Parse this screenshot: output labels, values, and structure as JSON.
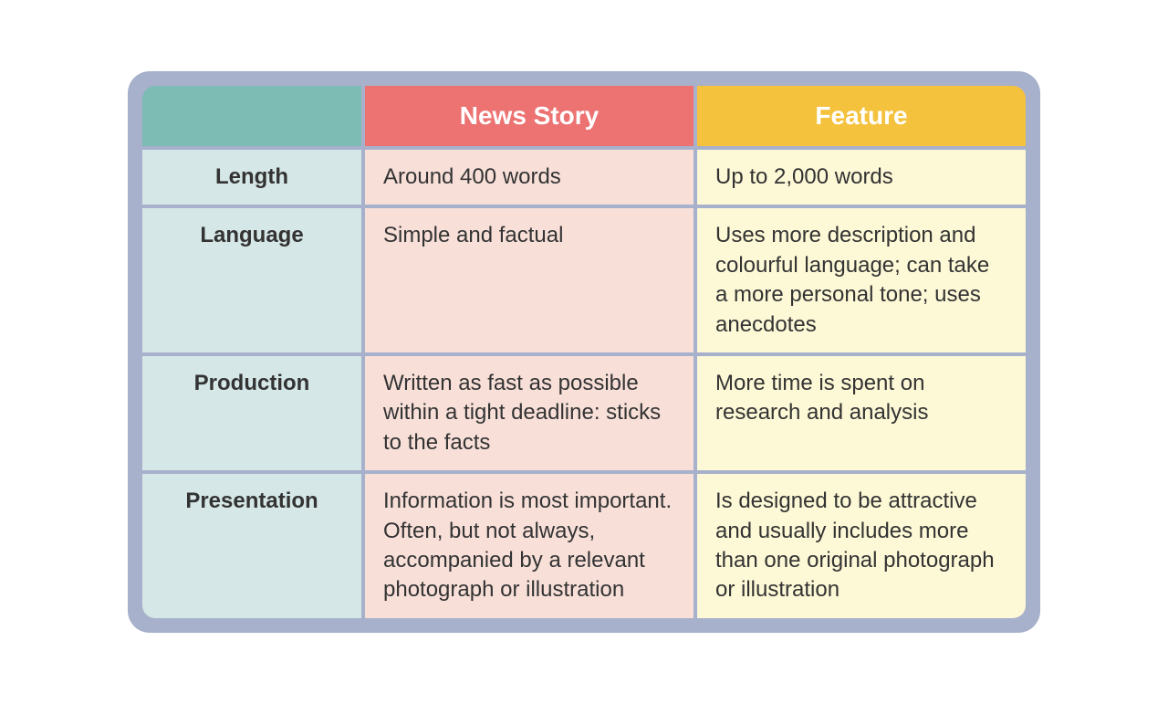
{
  "table": {
    "type": "table",
    "border_color": "#a8b1cc",
    "container_background": "#a8b1cc",
    "header_fontsize": 28,
    "cell_fontsize": 24,
    "columns": [
      {
        "key": "label",
        "header": "",
        "header_bg": "#7cbcb5",
        "cell_bg": "#d6e7e7",
        "width": "25%"
      },
      {
        "key": "news",
        "header": "News Story",
        "header_bg": "#ed7272",
        "cell_bg": "#f8e0d9",
        "width": "37.5%"
      },
      {
        "key": "feature",
        "header": "Feature",
        "header_bg": "#f4c23d",
        "cell_bg": "#fdf8d6",
        "width": "37.5%"
      }
    ],
    "rows": [
      {
        "label": "Length",
        "news": "Around 400 words",
        "feature": "Up to 2,000 words"
      },
      {
        "label": "Language",
        "news": "Simple and factual",
        "feature": "Uses more description and colourful language; can take a more personal tone; uses anecdotes"
      },
      {
        "label": "Production",
        "news": "Written as fast as possible within a tight deadline: sticks to the facts",
        "feature": "More time is spent on research and analysis"
      },
      {
        "label": "Presentation",
        "news": "Information is most important. Often, but not always, accompanied by a relevant photograph or illustration",
        "feature": "Is designed to be attractive and usually includes more than one original photograph or illustration"
      }
    ]
  }
}
